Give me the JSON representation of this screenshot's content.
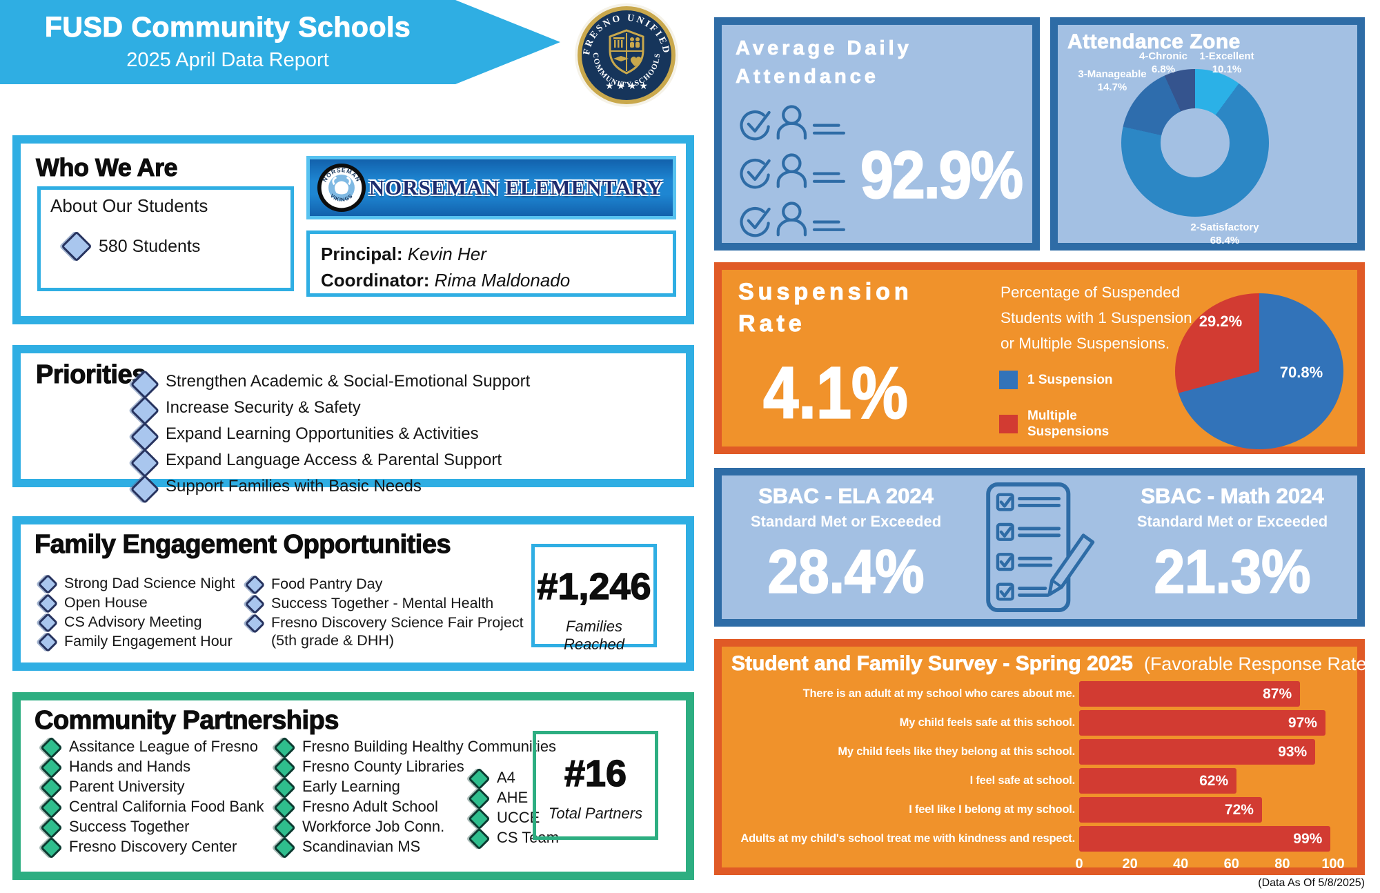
{
  "header": {
    "title": "FUSD Community Schools",
    "subtitle": "2025 April Data Report"
  },
  "seal": {
    "top_text": "FRESNO UNIFIED",
    "bottom_text": "COMMUNITY SCHOOLS"
  },
  "who_we_are": {
    "title": "Who We Are",
    "students_box_title": "About Our Students",
    "students_count": "580 Students",
    "school_name": "Norseman Elementary",
    "school_logo_top": "NORSEMAN",
    "school_logo_bottom": "VIKINGS",
    "principal_label": "Principal:",
    "principal_name": "Kevin Her",
    "coordinator_label": "Coordinator:",
    "coordinator_name": "Rima Maldonado"
  },
  "priorities": {
    "title": "Priorities",
    "items": [
      "Strengthen Academic & Social-Emotional Support",
      "Increase Security & Safety",
      "Expand Learning Opportunities &  Activities",
      "Expand Language Access & Parental Support",
      "Support Families with Basic Needs"
    ]
  },
  "family_engagement": {
    "title": "Family Engagement Opportunities",
    "column1": [
      "Strong Dad Science Night",
      "Open House",
      "CS Advisory Meeting",
      "Family Engagement Hour"
    ],
    "column2": [
      "Food Pantry Day",
      "Success Together - Mental Health",
      "Fresno Discovery Science Fair Project (5th grade & DHH)"
    ],
    "count": "#1,246",
    "count_label": "Families Reached"
  },
  "partnerships": {
    "title": "Community Partnerships",
    "column1": [
      "Assitance League of Fresno",
      "Hands and Hands",
      "Parent University",
      "Central California Food Bank",
      "Success Together",
      "Fresno Discovery Center"
    ],
    "column2": [
      "Fresno Building Healthy Communities",
      "Fresno County Libraries",
      "Early Learning",
      "Fresno Adult School",
      "Workforce Job Conn.",
      "Scandinavian MS"
    ],
    "column3": [
      "A4",
      "AHE",
      "UCCE",
      "CS Team"
    ],
    "count": "#16",
    "count_label": "Total Partners"
  },
  "attendance": {
    "title_line1": "Average Daily",
    "title_line2": "Attendance",
    "value": "92.9%"
  },
  "suspension": {
    "title_line1": "Suspension",
    "title_line2": "Rate",
    "value": "4.1%",
    "description": "Percentage of Suspended Students with 1 Suspension or Multiple Suspensions."
  },
  "sbac": {
    "ela_title": "SBAC - ELA 2024",
    "math_title": "SBAC - Math 2024",
    "subtitle": "Standard Met or Exceeded",
    "ela_value": "28.4%",
    "math_value": "21.3%"
  },
  "footnote": "(Data As Of 5/8/2025)",
  "chart_data": [
    {
      "id": "attendance_zone",
      "type": "pie",
      "style": "donut",
      "title": "Attendance Zone",
      "direction": "clockwise",
      "start_angle_deg": 0,
      "slices": [
        {
          "label": "1-Excellent",
          "value": 10.1,
          "pct_label": "10.1%",
          "color": "#2BB1E7"
        },
        {
          "label": "2-Satisfactory",
          "value": 68.4,
          "pct_label": "68.4%",
          "color": "#2C87C5"
        },
        {
          "label": "3-Manageable",
          "value": 14.7,
          "pct_label": "14.7%",
          "color": "#2E6DAD"
        },
        {
          "label": "4-Chronic",
          "value": 6.8,
          "pct_label": "6.8%",
          "color": "#35548E"
        }
      ]
    },
    {
      "id": "suspension_breakdown",
      "type": "pie",
      "title": "Percentage of Suspended Students with 1 Suspension or Multiple Suspensions.",
      "direction": "clockwise",
      "start_angle_deg": 0,
      "slices": [
        {
          "label": "1 Suspension",
          "value": 70.8,
          "pct_label": "70.8%",
          "color": "#3273B9"
        },
        {
          "label": "Multiple Suspensions",
          "value": 29.2,
          "pct_label": "29.2%",
          "color": "#D23B32"
        }
      ]
    },
    {
      "id": "survey",
      "type": "bar",
      "orientation": "horizontal",
      "title": "Student and Family Survey - Spring 2025",
      "subtitle": "(Favorable Response Rate)",
      "categories": [
        "There is an adult at my school who cares about me.",
        "My child feels safe at this school.",
        "My child feels like they belong at this school.",
        "I feel safe at school.",
        "I feel like I belong at my school.",
        "Adults at my child's school treat me with kindness and respect."
      ],
      "values": [
        87,
        97,
        93,
        62,
        72,
        99
      ],
      "value_labels": [
        "87%",
        "97%",
        "93%",
        "62%",
        "72%",
        "99%"
      ],
      "bar_color": "#D23B32",
      "xlim": [
        0,
        100
      ],
      "xticks": [
        0,
        20,
        40,
        60,
        80,
        100
      ],
      "grid": false
    }
  ]
}
